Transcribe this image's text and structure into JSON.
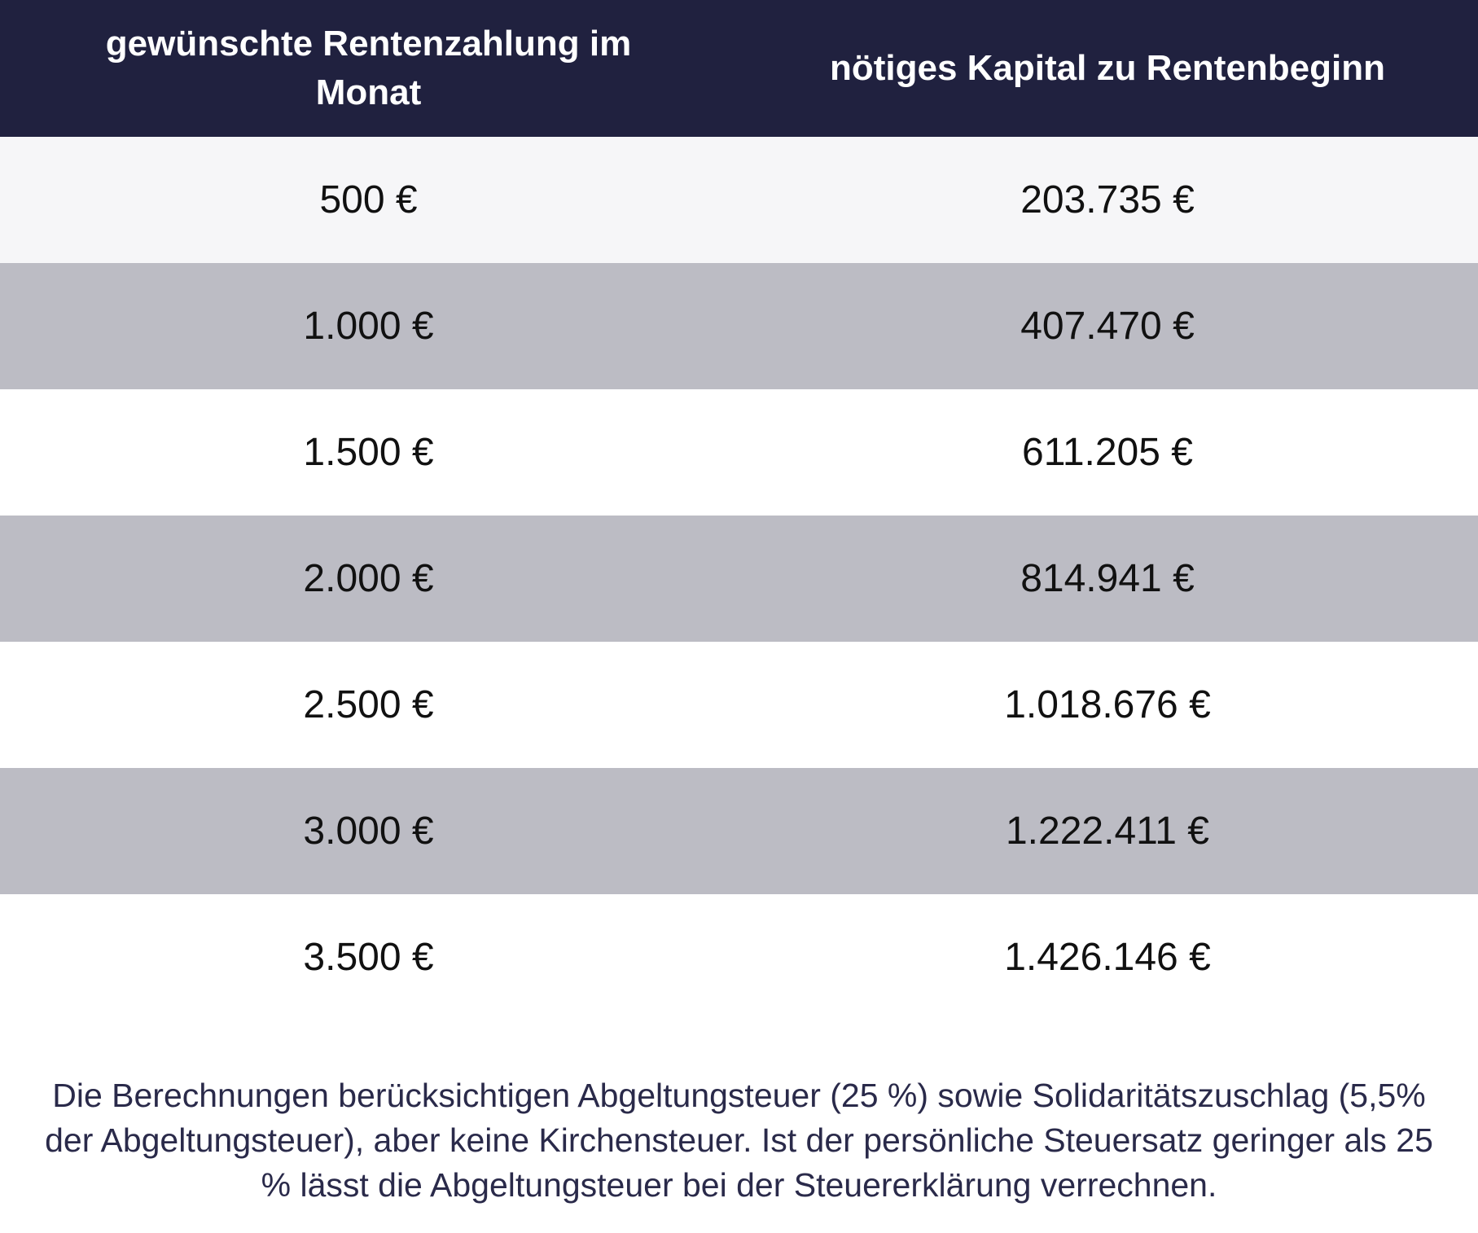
{
  "chart_data": {
    "type": "table",
    "columns": [
      "gewünschte Rentenzahlung im Monat",
      "nötiges Kapital zu Rentenbeginn"
    ],
    "rows": [
      [
        "500 €",
        "203.735 €"
      ],
      [
        "1.000 €",
        "407.470 €"
      ],
      [
        "1.500 €",
        "611.205 €"
      ],
      [
        "2.000 €",
        "814.941 €"
      ],
      [
        "2.500 €",
        "1.018.676 €"
      ],
      [
        "3.000 €",
        "1.222.411 €"
      ],
      [
        "3.500 €",
        "1.426.146 €"
      ]
    ],
    "header_color": "#20213f",
    "row_colors": [
      "#f6f6f8",
      "#bcbcc4",
      "#ffffff"
    ]
  },
  "footnote": "Die Berechnungen berücksichtigen Abgeltungsteuer (25 %) sowie Solidaritätszuschlag (5,5% der Abgeltungsteuer), aber keine Kirchensteuer. Ist der persönliche Steuersatz geringer als 25 % lässt die Abgeltungsteuer bei der Steuererklärung verrechnen."
}
